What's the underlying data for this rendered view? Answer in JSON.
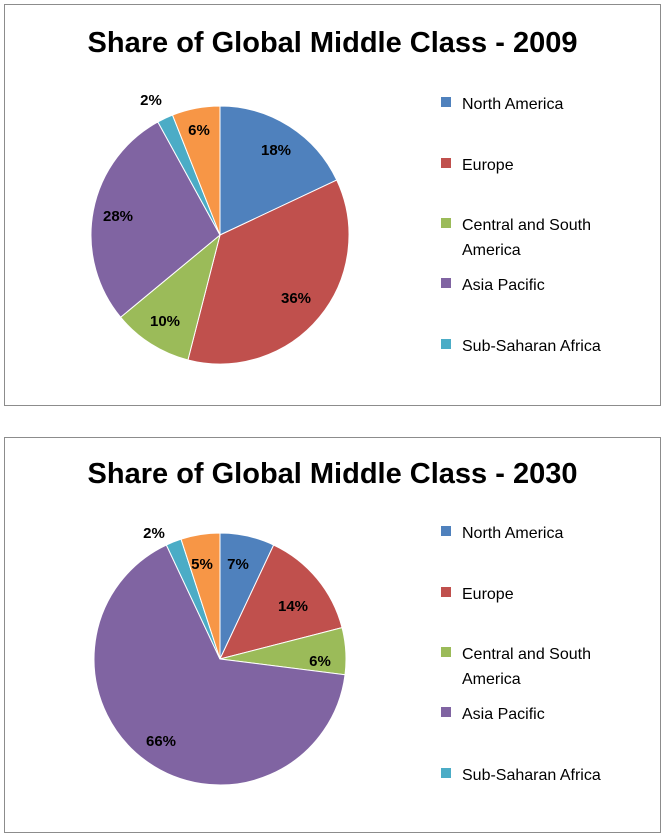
{
  "colors": {
    "north_america": "#4F81BD",
    "europe": "#C0504D",
    "central_south_america": "#9BBB59",
    "asia_pacific": "#8064A2",
    "sub_saharan_africa": "#4BACC6",
    "other": "#F79646"
  },
  "chart_data": [
    {
      "type": "pie",
      "title": "Share of Global Middle Class - 2009",
      "legend_position": "right",
      "slices": [
        {
          "label": "North America",
          "value": 18,
          "display": "18%",
          "color": "#4F81BD",
          "in_legend": true
        },
        {
          "label": "Europe",
          "value": 36,
          "display": "36%",
          "color": "#C0504D",
          "in_legend": true
        },
        {
          "label": "Central and South America",
          "value": 10,
          "display": "10%",
          "color": "#9BBB59",
          "in_legend": true
        },
        {
          "label": "Asia Pacific",
          "value": 28,
          "display": "28%",
          "color": "#8064A2",
          "in_legend": true
        },
        {
          "label": "Sub-Saharan Africa",
          "value": 2,
          "display": "2%",
          "color": "#4BACC6",
          "in_legend": true
        },
        {
          "label": "",
          "value": 6,
          "display": "6%",
          "color": "#F79646",
          "in_legend": false
        }
      ]
    },
    {
      "type": "pie",
      "title": "Share of Global Middle Class - 2030",
      "legend_position": "right",
      "slices": [
        {
          "label": "North America",
          "value": 7,
          "display": "7%",
          "color": "#4F81BD",
          "in_legend": true
        },
        {
          "label": "Europe",
          "value": 14,
          "display": "14%",
          "color": "#C0504D",
          "in_legend": true
        },
        {
          "label": "Central and South America",
          "value": 6,
          "display": "6%",
          "color": "#9BBB59",
          "in_legend": true
        },
        {
          "label": "Asia Pacific",
          "value": 66,
          "display": "66%",
          "color": "#8064A2",
          "in_legend": true
        },
        {
          "label": "Sub-Saharan Africa",
          "value": 2,
          "display": "2%",
          "color": "#4BACC6",
          "in_legend": true
        },
        {
          "label": "",
          "value": 5,
          "display": "5%",
          "color": "#F79646",
          "in_legend": false
        }
      ]
    }
  ]
}
